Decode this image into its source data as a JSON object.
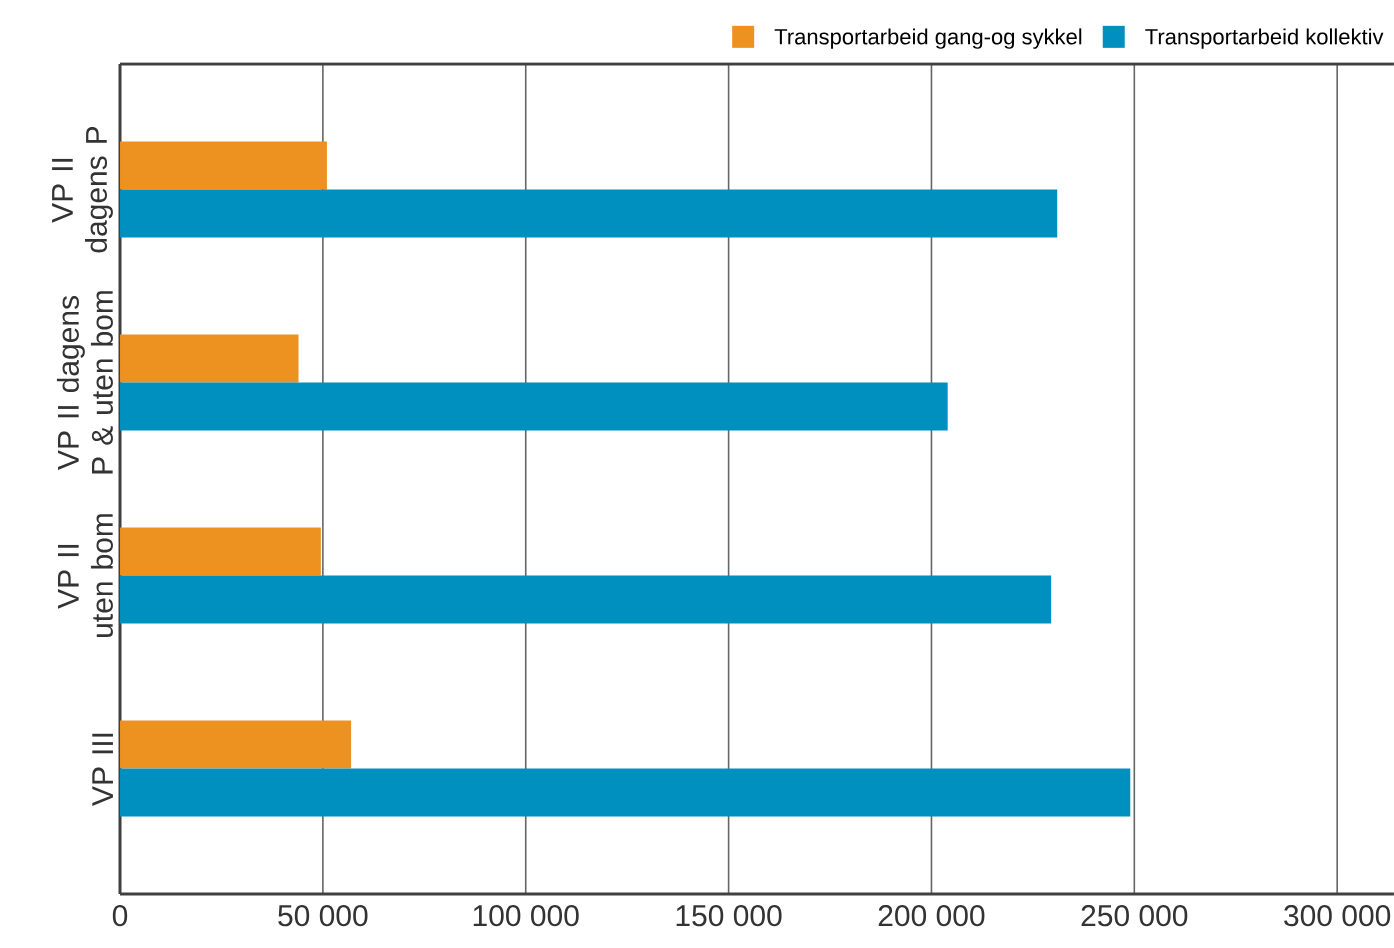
{
  "chart_data": {
    "type": "bar",
    "orientation": "horizontal",
    "categories": [
      "VP II dagens P",
      "VP II dagens P & uten bom",
      "VP II uten bom",
      "VP III"
    ],
    "series": [
      {
        "name": "Transportarbeid gang-og sykkel",
        "color": "#ed9121",
        "values": [
          51000,
          44000,
          49500,
          57000
        ]
      },
      {
        "name": "Transportarbeid kollektiv",
        "color": "#0090c0",
        "values": [
          231000,
          204000,
          229500,
          249000
        ]
      }
    ],
    "xlim": [
      0,
      314000
    ],
    "xticks": [
      0,
      {
        "value": 50000,
        "label": "50 000"
      },
      {
        "value": 100000,
        "label": "100 000"
      },
      {
        "value": 150000,
        "label": "150 000"
      },
      {
        "value": 200000,
        "label": "200 000"
      },
      {
        "value": 250000,
        "label": "250 000"
      },
      {
        "value": 300000,
        "label": "300 000"
      }
    ],
    "grid": "x",
    "legend": "top right"
  }
}
